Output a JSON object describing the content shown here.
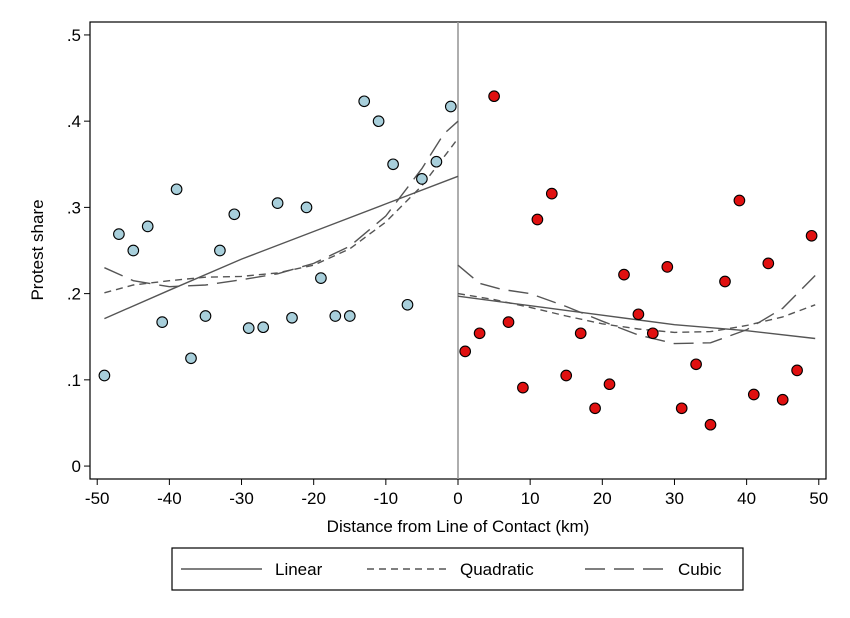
{
  "chart_data": {
    "type": "scatter",
    "xlabel": "Distance from Line of Contact (km)",
    "ylabel": "Protest share",
    "xlim": [
      -51,
      51
    ],
    "ylim": [
      -0.015,
      0.515
    ],
    "x_ticks": [
      -50,
      -40,
      -30,
      -20,
      -10,
      0,
      10,
      20,
      30,
      40,
      50
    ],
    "x_tick_labels": [
      "-50",
      "-40",
      "-30",
      "-20",
      "-10",
      "0",
      "10",
      "20",
      "30",
      "40",
      "50"
    ],
    "y_ticks": [
      0,
      0.1,
      0.2,
      0.3,
      0.4,
      0.5
    ],
    "y_tick_labels": [
      "0",
      ".1",
      ".2",
      ".3",
      ".4",
      ".5"
    ],
    "grid": false,
    "cutoff": 0,
    "legend_position": "bottom",
    "colors": {
      "left_points": "#a8cfdb",
      "right_points": "#e01010",
      "point_outline": "#000000",
      "fit_line": "#555555",
      "cutoff_line": "#999999"
    },
    "point_series": [
      {
        "side": "left",
        "x": [
          -49,
          -47,
          -45,
          -43,
          -41,
          -39,
          -37,
          -35,
          -33,
          -31,
          -29,
          -27,
          -25,
          -23,
          -21,
          -19,
          -17,
          -15,
          -13,
          -11,
          -9,
          -7,
          -5,
          -3,
          -1
        ],
        "y": [
          0.105,
          0.269,
          0.25,
          0.278,
          0.167,
          0.321,
          0.125,
          0.174,
          0.25,
          0.292,
          0.16,
          0.161,
          0.305,
          0.172,
          0.3,
          0.218,
          0.174,
          0.174,
          0.423,
          0.4,
          0.35,
          0.187,
          0.333,
          0.353,
          0.417
        ]
      },
      {
        "side": "right",
        "x": [
          1,
          3,
          5,
          7,
          9,
          11,
          13,
          15,
          17,
          19,
          21,
          23,
          25,
          27,
          29,
          31,
          33,
          35,
          37,
          39,
          41,
          43,
          45,
          47,
          49
        ],
        "y": [
          0.133,
          0.154,
          0.429,
          0.167,
          0.091,
          0.286,
          0.316,
          0.105,
          0.154,
          0.067,
          0.095,
          0.222,
          0.176,
          0.154,
          0.231,
          0.067,
          0.118,
          0.048,
          0.214,
          0.308,
          0.083,
          0.235,
          0.077,
          0.111,
          0.267
        ]
      }
    ],
    "fit_lines": [
      {
        "name": "Linear",
        "style": "solid",
        "segments": [
          {
            "x": [
              -49,
              -40,
              -30,
              -20,
              -10,
              0
            ],
            "y": [
              0.171,
              0.204,
              0.24,
              0.272,
              0.304,
              0.336
            ]
          },
          {
            "x": [
              0,
              10,
              20,
              30,
              40,
              49.5
            ],
            "y": [
              0.197,
              0.186,
              0.175,
              0.164,
              0.157,
              0.148
            ]
          }
        ]
      },
      {
        "name": "Quadratic",
        "style": "dashed",
        "segments": [
          {
            "x": [
              -49,
              -45,
              -40,
              -35,
              -30,
              -25,
              -20,
              -15,
              -10,
              -5,
              -2,
              0
            ],
            "y": [
              0.201,
              0.21,
              0.215,
              0.219,
              0.22,
              0.224,
              0.233,
              0.252,
              0.283,
              0.325,
              0.358,
              0.38
            ]
          },
          {
            "x": [
              0,
              5,
              10,
              15,
              20,
              25,
              30,
              35,
              40,
              45,
              49.5
            ],
            "y": [
              0.2,
              0.193,
              0.184,
              0.174,
              0.165,
              0.159,
              0.155,
              0.156,
              0.163,
              0.173,
              0.187
            ]
          }
        ]
      },
      {
        "name": "Cubic",
        "style": "longdash",
        "segments": [
          {
            "x": [
              -49,
              -45,
              -40,
              -35,
              -30,
              -25,
              -20,
              -15,
              -10,
              -5,
              -2,
              0
            ],
            "y": [
              0.23,
              0.215,
              0.208,
              0.21,
              0.216,
              0.223,
              0.235,
              0.255,
              0.29,
              0.345,
              0.385,
              0.4
            ]
          },
          {
            "x": [
              0,
              3,
              6,
              10,
              15,
              20,
              25,
              30,
              35,
              40,
              45,
              49.5
            ],
            "y": [
              0.233,
              0.212,
              0.205,
              0.2,
              0.185,
              0.168,
              0.152,
              0.142,
              0.143,
              0.158,
              0.183,
              0.221
            ]
          }
        ]
      }
    ]
  }
}
